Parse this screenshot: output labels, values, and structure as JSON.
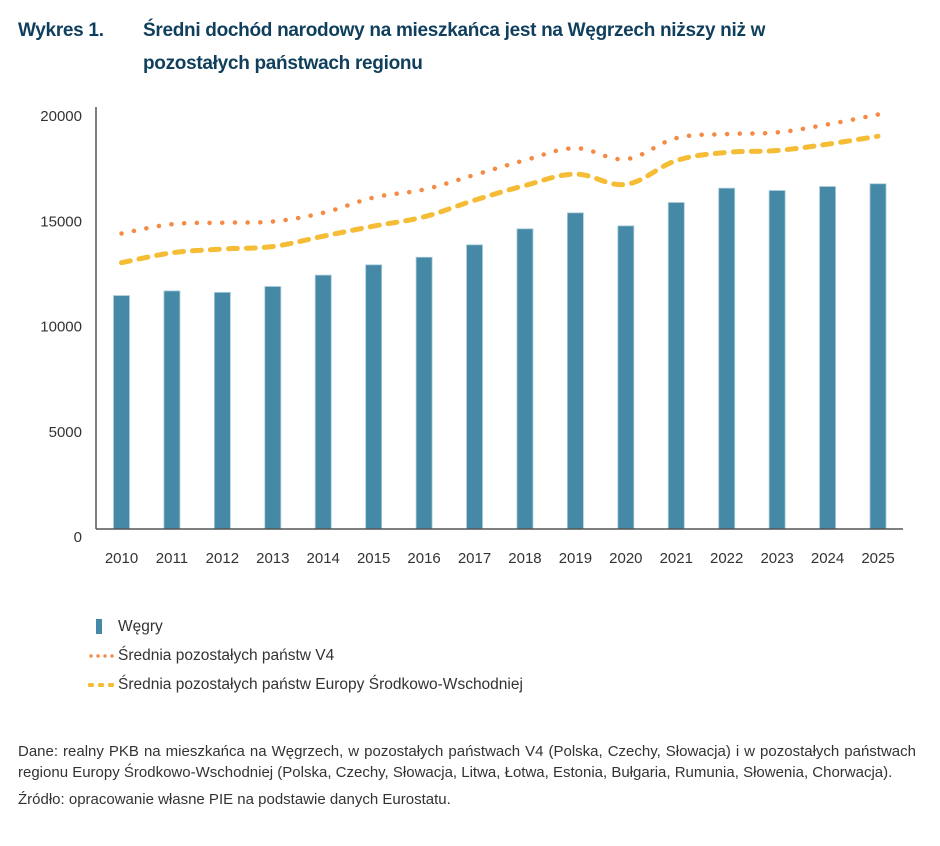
{
  "header": {
    "figure_number": "Wykres 1.",
    "title": "Średni dochód narodowy na mieszkańca jest na Węgrzech niższy niż w pozostałych państwach regionu"
  },
  "colors": {
    "title": "#0f3f5c",
    "bar": "#4589a6",
    "bar_edge": "#a9cbd8",
    "v4_line": "#f58a45",
    "cee_line": "#f4bd35",
    "axis": "#555555"
  },
  "chart_data": {
    "type": "bar",
    "title": "Średni dochód narodowy na mieszkańca jest na Węgrzech niższy niż w pozostałych państwach regionu",
    "xlabel": "",
    "ylabel": "",
    "ylim": [
      0,
      20000
    ],
    "yticks": [
      0,
      5000,
      10000,
      15000,
      20000
    ],
    "ytick_labels": [
      "0",
      "5000",
      "10000",
      "15000",
      "20000"
    ],
    "grid": false,
    "legend_position": "bottom-left",
    "categories": [
      "2010",
      "2011",
      "2012",
      "2013",
      "2014",
      "2015",
      "2016",
      "2017",
      "2018",
      "2019",
      "2020",
      "2021",
      "2022",
      "2023",
      "2024",
      "2025"
    ],
    "series": [
      {
        "name": "Węgry",
        "type": "bar",
        "values": [
          11090,
          11310,
          11240,
          11520,
          12060,
          12550,
          12910,
          13500,
          14260,
          15020,
          14400,
          15510,
          16190,
          16080,
          16270,
          16400
        ]
      },
      {
        "name": "Średnia pozostałych państw V4",
        "type": "line",
        "style": "dotted",
        "values": [
          14040,
          14480,
          14550,
          14610,
          15020,
          15750,
          16130,
          16820,
          17520,
          18090,
          17570,
          18570,
          18760,
          18840,
          19220,
          19690
        ]
      },
      {
        "name": "Średnia pozostałych państw Europy Środkowo-Wschodniej",
        "type": "line",
        "style": "dashed",
        "values": [
          12650,
          13120,
          13300,
          13420,
          13910,
          14390,
          14830,
          15620,
          16320,
          16860,
          16370,
          17500,
          17890,
          17980,
          18280,
          18660
        ]
      }
    ]
  },
  "legend": {
    "items": [
      {
        "label": "Węgry",
        "symbol": "bar"
      },
      {
        "label": "Średnia pozostałych państw V4",
        "symbol": "dotted-line"
      },
      {
        "label": "Średnia pozostałych państw Europy Środkowo-Wschodniej",
        "symbol": "dashed-line"
      }
    ]
  },
  "footer": {
    "data_note": "Dane: realny PKB na mieszkańca na Węgrzech, w pozostałych państwach V4 (Polska, Czechy, Słowacja) i w pozostałych państwach regionu Europy Środkowo-Wschodniej (Polska, Czechy, Słowacja, Litwa, Łotwa, Estonia, Bułgaria, Rumunia, Słowenia, Chorwacja).",
    "source": "Źródło: opracowanie własne PIE na podstawie danych Eurostatu."
  }
}
